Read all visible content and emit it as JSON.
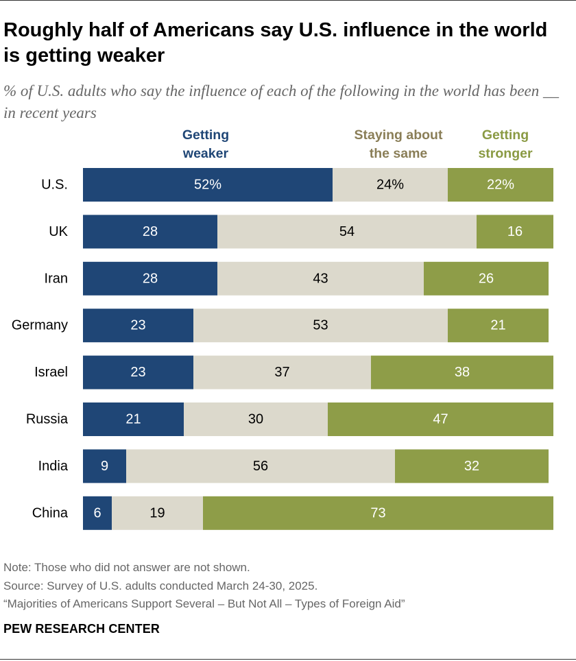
{
  "title": "Roughly half of Americans say U.S. influence in the world is getting weaker",
  "subtitle": "% of U.S. adults who say the influence of each of the following in the world has been __ in recent years",
  "legend": [
    {
      "label_line1": "Getting",
      "label_line2": "weaker",
      "color": "#1f4676"
    },
    {
      "label_line1": "Staying about",
      "label_line2": "the same",
      "color": "#8a7e57"
    },
    {
      "label_line1": "Getting",
      "label_line2": "stronger",
      "color": "#8a9a43"
    }
  ],
  "chart_data": {
    "type": "bar",
    "orientation": "horizontal",
    "stacked": true,
    "categories": [
      "U.S.",
      "UK",
      "Iran",
      "Germany",
      "Israel",
      "Russia",
      "India",
      "China"
    ],
    "series": [
      {
        "name": "Getting weaker",
        "color": "#1f4676",
        "text_color": "#ffffff",
        "values": [
          52,
          28,
          28,
          23,
          23,
          21,
          9,
          6
        ]
      },
      {
        "name": "Staying about the same",
        "color": "#dcd9cc",
        "text_color": "#000000",
        "values": [
          24,
          54,
          43,
          53,
          37,
          30,
          56,
          19
        ]
      },
      {
        "name": "Getting stronger",
        "color": "#8e9d48",
        "text_color": "#ffffff",
        "values": [
          22,
          16,
          26,
          21,
          38,
          47,
          32,
          73
        ]
      }
    ],
    "first_row_suffix": "%",
    "xlim": [
      0,
      100
    ]
  },
  "notes": {
    "note": "Note: Those who did not answer are not shown.",
    "source": "Source: Survey of U.S. adults conducted March 24-30, 2025.",
    "report": "“Majorities of Americans Support Several – But Not All – Types of Foreign Aid”",
    "brand": "PEW RESEARCH CENTER"
  }
}
